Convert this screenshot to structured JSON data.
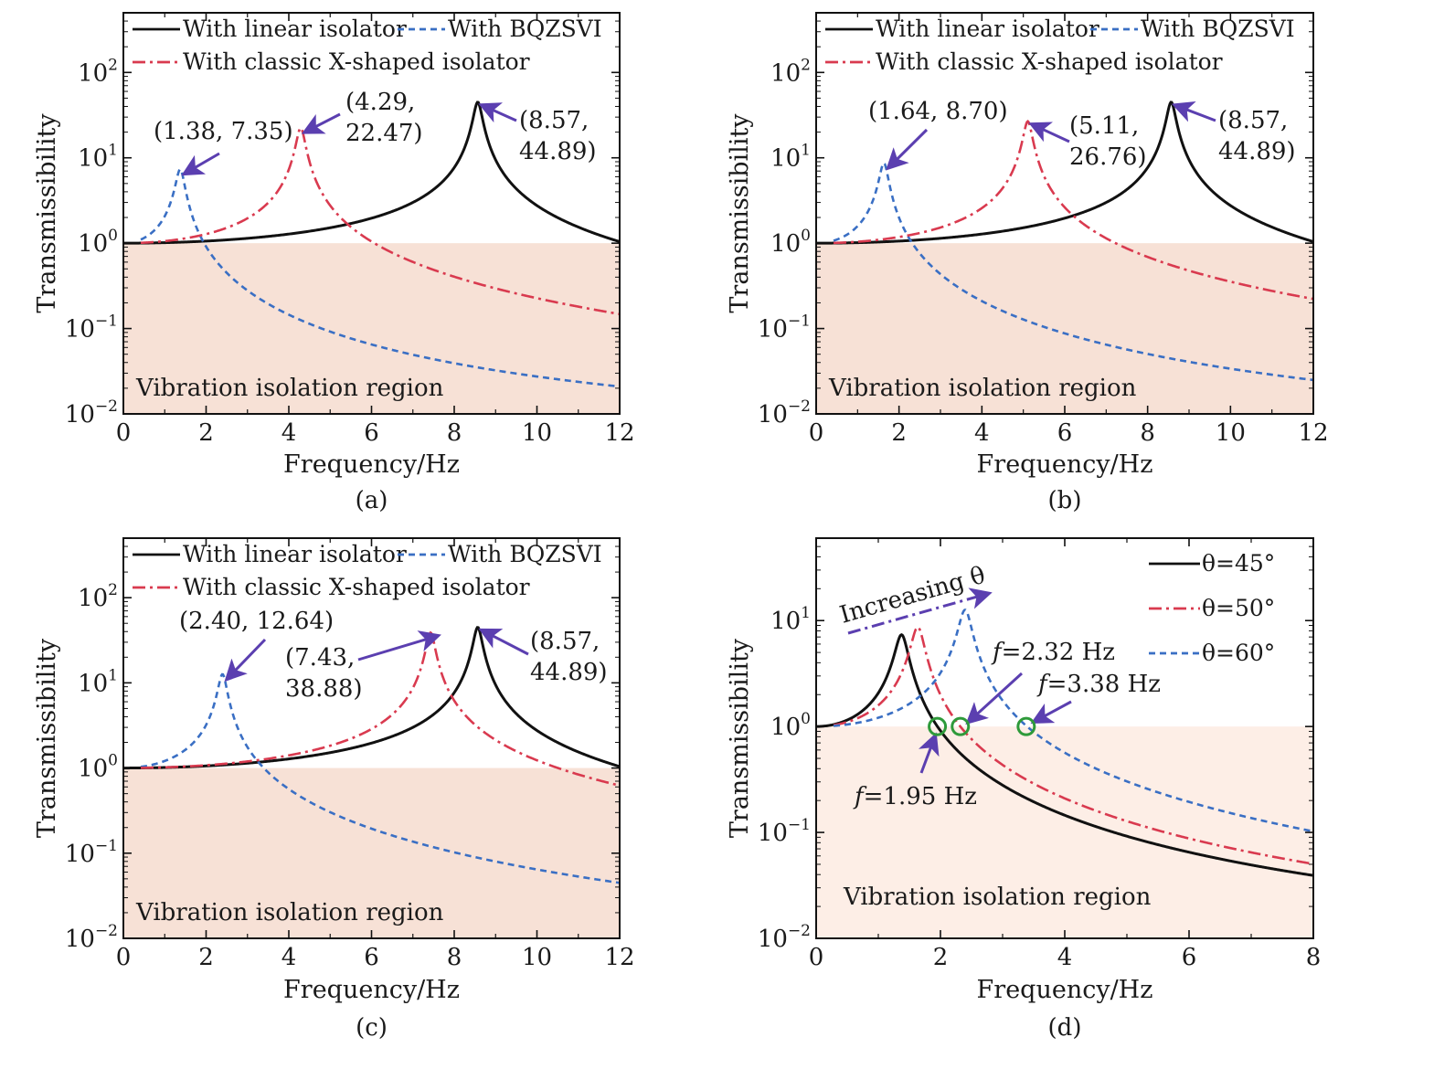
{
  "figure": {
    "accent_colors": {
      "linear": "#111111",
      "bqzsvi": "#3a6fc4",
      "classic": "#d93a4f",
      "arrow": "#5b3fb0",
      "region_fill": "#f7e1d6",
      "region_fill_light": "#fdeee6",
      "circle": "#2e9a3a"
    }
  },
  "chart_data": [
    {
      "id": "a",
      "type": "line",
      "caption": "(a)",
      "xlabel": "Frequency/Hz",
      "ylabel": "Transmissibility",
      "xlim": [
        0,
        12
      ],
      "ylim": [
        0.01,
        500
      ],
      "yscale": "log",
      "xticks": [
        "0",
        "2",
        "4",
        "6",
        "8",
        "10",
        "12"
      ],
      "yticks": [
        "10^-2",
        "10^-1",
        "10^0",
        "10^1",
        "10^2"
      ],
      "region_label": "Vibration isolation region",
      "legend": {
        "placement": "top-left",
        "entries": [
          "With linear isolator",
          "With BQZSVI",
          "With classic X-shaped isolator"
        ]
      },
      "series": [
        {
          "name": "With linear isolator",
          "style": "solid",
          "peak_freq": 8.57,
          "peak_value": 44.89
        },
        {
          "name": "With BQZSVI",
          "style": "dashed",
          "peak_freq": 1.38,
          "peak_value": 7.35
        },
        {
          "name": "With classic X-shaped isolator",
          "style": "dashdot",
          "peak_freq": 4.29,
          "peak_value": 22.47
        }
      ],
      "annotations": [
        {
          "lines": [
            "(1.38, 7.35)"
          ],
          "points_to": [
            1.38,
            7.35
          ]
        },
        {
          "lines": [
            "(4.29,",
            "22.47)"
          ],
          "points_to": [
            4.29,
            22.47
          ]
        },
        {
          "lines": [
            "(8.57,",
            "44.89)"
          ],
          "points_to": [
            8.57,
            44.89
          ]
        }
      ]
    },
    {
      "id": "b",
      "type": "line",
      "caption": "(b)",
      "xlabel": "Frequency/Hz",
      "ylabel": "Transmissibility",
      "xlim": [
        0,
        12
      ],
      "ylim": [
        0.01,
        500
      ],
      "yscale": "log",
      "xticks": [
        "0",
        "2",
        "4",
        "6",
        "8",
        "10",
        "12"
      ],
      "yticks": [
        "10^-2",
        "10^-1",
        "10^0",
        "10^1",
        "10^2"
      ],
      "region_label": "Vibration isolation region",
      "legend": {
        "placement": "top-left",
        "entries": [
          "With linear isolator",
          "With BQZSVI",
          "With classic X-shaped isolator"
        ]
      },
      "series": [
        {
          "name": "With linear isolator",
          "style": "solid",
          "peak_freq": 8.57,
          "peak_value": 44.89
        },
        {
          "name": "With BQZSVI",
          "style": "dashed",
          "peak_freq": 1.64,
          "peak_value": 8.7
        },
        {
          "name": "With classic X-shaped isolator",
          "style": "dashdot",
          "peak_freq": 5.11,
          "peak_value": 26.76
        }
      ],
      "annotations": [
        {
          "lines": [
            "(1.64, 8.70)"
          ],
          "points_to": [
            1.64,
            8.7
          ]
        },
        {
          "lines": [
            "(5.11,",
            "26.76)"
          ],
          "points_to": [
            5.11,
            26.76
          ]
        },
        {
          "lines": [
            "(8.57,",
            "44.89)"
          ],
          "points_to": [
            8.57,
            44.89
          ]
        }
      ]
    },
    {
      "id": "c",
      "type": "line",
      "caption": "(c)",
      "xlabel": "Frequency/Hz",
      "ylabel": "Transmissibility",
      "xlim": [
        0,
        12
      ],
      "ylim": [
        0.01,
        500
      ],
      "yscale": "log",
      "xticks": [
        "0",
        "2",
        "4",
        "6",
        "8",
        "10",
        "12"
      ],
      "yticks": [
        "10^-2",
        "10^-1",
        "10^0",
        "10^1",
        "10^2"
      ],
      "region_label": "Vibration isolation region",
      "legend": {
        "placement": "top-left",
        "entries": [
          "With linear isolator",
          "With BQZSVI",
          "With classic X-shaped isolator"
        ]
      },
      "series": [
        {
          "name": "With linear isolator",
          "style": "solid",
          "peak_freq": 8.57,
          "peak_value": 44.89
        },
        {
          "name": "With BQZSVI",
          "style": "dashed",
          "peak_freq": 2.4,
          "peak_value": 12.64
        },
        {
          "name": "With classic X-shaped isolator",
          "style": "dashdot",
          "peak_freq": 7.43,
          "peak_value": 38.88
        }
      ],
      "annotations": [
        {
          "lines": [
            "(2.40, 12.64)"
          ],
          "points_to": [
            2.4,
            12.64
          ]
        },
        {
          "lines": [
            "(7.43,",
            "38.88)"
          ],
          "points_to": [
            7.43,
            38.88
          ]
        },
        {
          "lines": [
            "(8.57,",
            "44.89)"
          ],
          "points_to": [
            8.57,
            44.89
          ]
        }
      ]
    },
    {
      "id": "d",
      "type": "line",
      "caption": "(d)",
      "xlabel": "Frequency/Hz",
      "ylabel": "Transmissibility",
      "xlim": [
        0,
        8
      ],
      "ylim": [
        0.01,
        60
      ],
      "yscale": "log",
      "xticks": [
        "0",
        "2",
        "4",
        "6",
        "8"
      ],
      "yticks": [
        "10^-2",
        "10^-1",
        "10^0",
        "10^1"
      ],
      "region_label": "Vibration isolation region",
      "legend": {
        "placement": "top-right",
        "entries": [
          "θ=45°",
          "θ=50°",
          "θ=60°"
        ]
      },
      "series": [
        {
          "name": "θ=45°",
          "style": "solid",
          "peak_freq": 1.38,
          "peak_value": 7.35,
          "crossover_freq": 1.95
        },
        {
          "name": "θ=50°",
          "style": "dashdot",
          "peak_freq": 1.64,
          "peak_value": 8.7,
          "crossover_freq": 2.32
        },
        {
          "name": "θ=60°",
          "style": "dashed",
          "peak_freq": 2.4,
          "peak_value": 12.64,
          "crossover_freq": 3.38
        }
      ],
      "increasing_label": "Increasing θ",
      "crossover_labels": [
        "f=1.95 Hz",
        "f=2.32 Hz",
        "f=3.38 Hz"
      ]
    }
  ]
}
